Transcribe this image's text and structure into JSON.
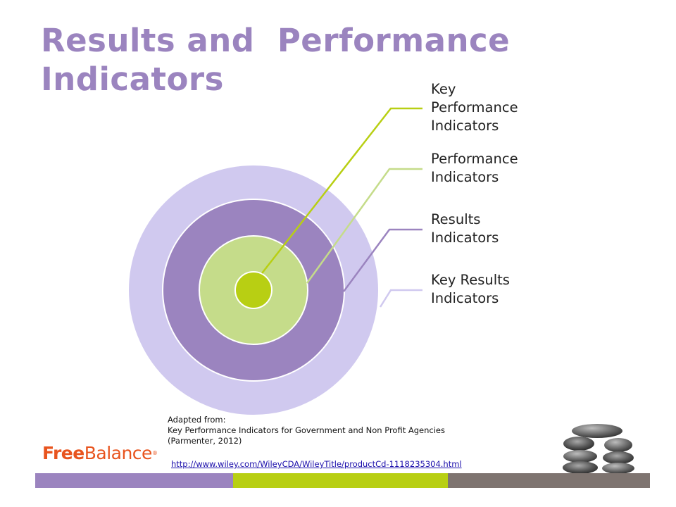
{
  "title": {
    "line1": "Results and  Performance",
    "line2": "Indicators"
  },
  "rings": [
    {
      "name": "Key Results Indicators",
      "color": "#d0c9ef"
    },
    {
      "name": "Results Indicators",
      "color": "#9b84bf"
    },
    {
      "name": "Performance Indicators",
      "color": "#c5dc8a"
    },
    {
      "name": "Key Performance Indicators",
      "color": "#b8cf13"
    }
  ],
  "labels": [
    {
      "lines": [
        "Key",
        "Performance",
        "Indicators"
      ],
      "line_color": "#b8cf13"
    },
    {
      "lines": [
        "Performance",
        "Indicators"
      ],
      "line_color": "#c5dc8a"
    },
    {
      "lines": [
        "Results",
        "Indicators"
      ],
      "line_color": "#9b84bf"
    },
    {
      "lines": [
        "Key Results",
        "Indicators"
      ],
      "line_color": "#d0c9ef"
    }
  ],
  "source": {
    "line1": "Adapted from:",
    "line2": "Key Performance  Indicators for Government  and Non Profit Agencies",
    "line3": "(Parmenter,  2012)",
    "link": "http://www.wiley.com/WileyCDA/WileyTitle/productCd-1118235304.html"
  },
  "logo": {
    "bold": "Free",
    "regular": "Balance",
    "mark": "®"
  },
  "footer_colors": [
    "#9b84bf",
    "#b8cf13",
    "#7e7470"
  ]
}
